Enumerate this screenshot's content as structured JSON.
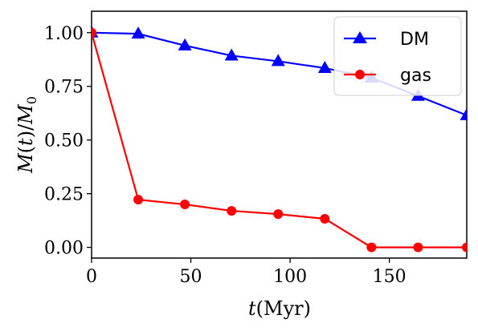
{
  "chart_data": {
    "type": "line",
    "xlabel": "t(Myr)",
    "ylabel": "M(t)/M0",
    "xlim": [
      0,
      189
    ],
    "ylim": [
      -0.05,
      1.1
    ],
    "xticks": [
      0,
      50,
      100,
      150
    ],
    "xtick_labels": [
      "0",
      "50",
      "100",
      "150"
    ],
    "yticks": [
      0.0,
      0.25,
      0.5,
      0.75,
      1.0
    ],
    "ytick_labels": [
      "0.00",
      "0.25",
      "0.50",
      "0.75",
      "1.00"
    ],
    "grid": false,
    "legend_position": "top-right",
    "series": [
      {
        "name": "DM",
        "color": "#0000ff",
        "marker": "triangle",
        "x": [
          0,
          23.5,
          47,
          70.5,
          94,
          117.5,
          141,
          164.5,
          189
        ],
        "y": [
          1.0,
          0.995,
          0.94,
          0.893,
          0.867,
          0.835,
          0.79,
          0.705,
          0.615
        ]
      },
      {
        "name": "gas",
        "color": "#ff0000",
        "marker": "circle",
        "x": [
          0,
          23.5,
          47,
          70.5,
          94,
          117.5,
          141,
          164.5,
          189
        ],
        "y": [
          1.0,
          0.222,
          0.2,
          0.17,
          0.155,
          0.133,
          0.0,
          0.0,
          0.0
        ]
      }
    ]
  }
}
